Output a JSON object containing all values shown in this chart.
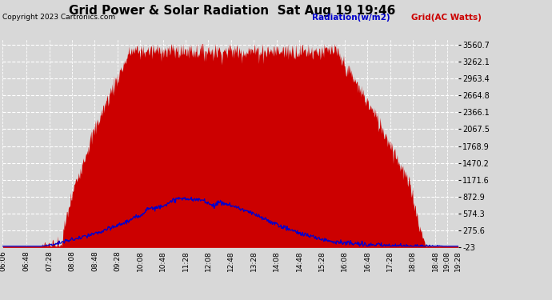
{
  "title": "Grid Power & Solar Radiation  Sat Aug 19 19:46",
  "copyright": "Copyright 2023 Cartronics.com",
  "legend_radiation": "Radiation(w/m2)",
  "legend_grid": "Grid(AC Watts)",
  "y_ticks": [
    3560.7,
    3262.1,
    2963.4,
    2664.8,
    2366.1,
    2067.5,
    1768.9,
    1470.2,
    1171.6,
    872.9,
    574.3,
    275.6,
    -23.0
  ],
  "x_tick_labels": [
    "06:06",
    "06:48",
    "07:28",
    "08:08",
    "08:48",
    "09:28",
    "10:08",
    "10:48",
    "11:28",
    "12:08",
    "12:48",
    "13:28",
    "14:08",
    "14:48",
    "15:28",
    "16:08",
    "16:48",
    "17:28",
    "18:08",
    "18:48",
    "19:08",
    "19:28"
  ],
  "bg_color": "#d8d8d8",
  "plot_bg_color": "#d8d8d8",
  "grid_color": "#ffffff",
  "fill_color": "#cc0000",
  "line_color": "#0000cc",
  "title_color": "#000000",
  "copyright_color": "#000000",
  "radiation_label_color": "#0000cc",
  "grid_label_color": "#cc0000",
  "ymin": -23.0,
  "ymax": 3660.7
}
